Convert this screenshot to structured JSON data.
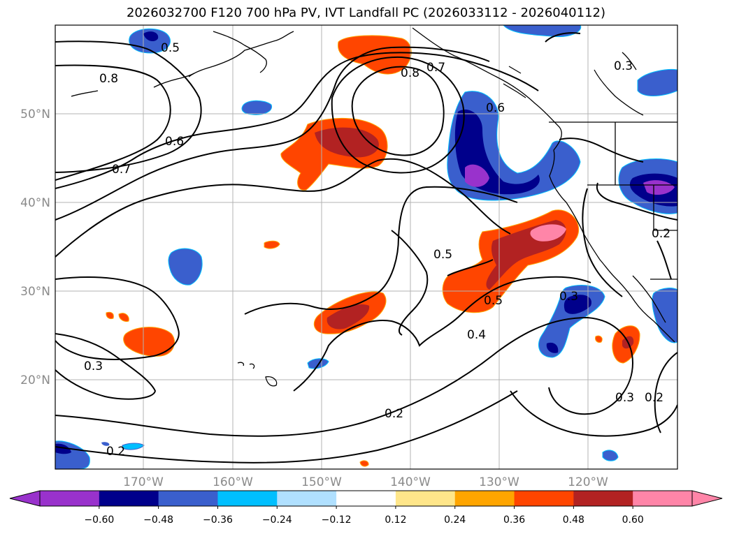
{
  "title": "2026032700 F120 700 hPa PV, IVT Landfall PC (2026033112 - 2026040112)",
  "lat_labels": [
    "50°N",
    "40°N",
    "30°N",
    "20°N"
  ],
  "lon_labels": [
    "170°W",
    "160°W",
    "150°W",
    "140°W",
    "130°W",
    "120°W"
  ],
  "colorbar": {
    "ticks": [
      "−0.60",
      "−0.48",
      "−0.36",
      "−0.24",
      "−0.12",
      "0.12",
      "0.24",
      "0.36",
      "0.48",
      "0.60"
    ],
    "colors": [
      "#9932cc",
      "#00008b",
      "#3a5fcd",
      "#00bfff",
      "#b0e0ff",
      "#ffffff",
      "#ffe68a",
      "#ffa500",
      "#ff4500",
      "#b22222",
      "#ff85a8"
    ]
  },
  "contour_labels": [
    "0.5",
    "0.8",
    "0.7",
    "0.6",
    "0.8",
    "0.7",
    "0.6",
    "0.3",
    "0.2",
    "0.5",
    "0.5",
    "0.4",
    "0.3",
    "0.3",
    "0.2",
    "0.3",
    "0.2",
    "0.2"
  ]
}
